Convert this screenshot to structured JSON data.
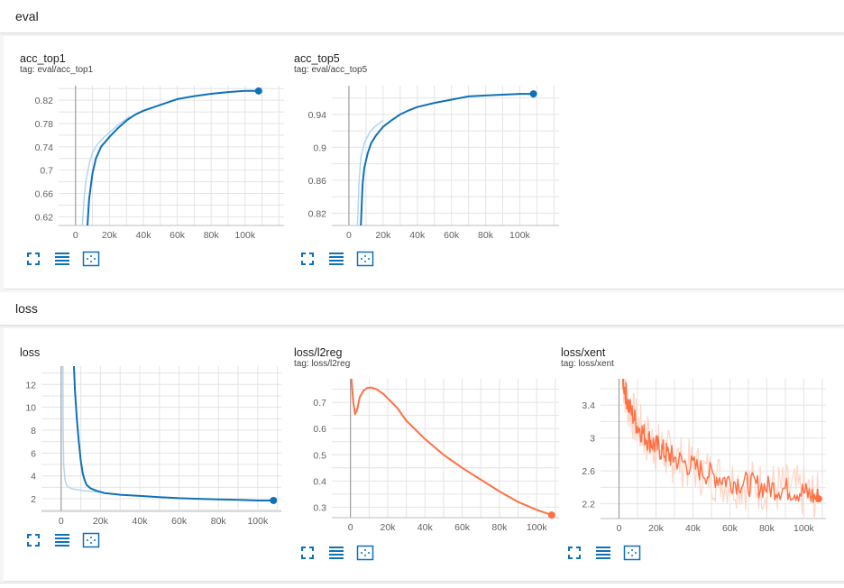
{
  "sections": {
    "eval": {
      "label": "eval"
    },
    "loss": {
      "label": "loss"
    }
  },
  "cards": {
    "acc_top1": {
      "title": "acc_top1",
      "tag": "tag: eval/acc_top1"
    },
    "acc_top5": {
      "title": "acc_top5",
      "tag": "tag: eval/acc_top5"
    },
    "loss": {
      "title": "loss",
      "tag": ""
    },
    "l2reg": {
      "title": "loss/l2reg",
      "tag": "tag: loss/l2reg"
    },
    "xent": {
      "title": "loss/xent",
      "tag": "tag: loss/xent"
    }
  },
  "icons": {
    "fullscreen": "fullscreen-icon",
    "log_scale": "list-lines-icon",
    "fit_domain": "fit-domain-icon"
  },
  "colors": {
    "blue": "#0f71b8",
    "blue_light": "#b8d4ec",
    "orange": "#ff7043",
    "orange_light": "#ffd5c6"
  },
  "chart_data": [
    {
      "id": "acc_top1",
      "type": "line",
      "title": "acc_top1",
      "x_ticks": [
        "0",
        "20k",
        "40k",
        "60k",
        "80k",
        "100k"
      ],
      "y_ticks": [
        "0.62",
        "0.66",
        "0.7",
        "0.74",
        "0.78",
        "0.82"
      ],
      "xlim": [
        -10000,
        123000
      ],
      "ylim": [
        0.605,
        0.845
      ],
      "series": [
        {
          "role": "smoothed",
          "color": "#0f71b8",
          "x": [
            7000,
            8000,
            10000,
            12000,
            15000,
            20000,
            25000,
            30000,
            35000,
            40000,
            50000,
            60000,
            70000,
            80000,
            90000,
            100000,
            108000
          ],
          "y": [
            0.605,
            0.65,
            0.695,
            0.72,
            0.74,
            0.757,
            0.772,
            0.785,
            0.795,
            0.802,
            0.812,
            0.822,
            0.827,
            0.831,
            0.834,
            0.836,
            0.836
          ]
        },
        {
          "role": "raw",
          "color": "#b8d4ec",
          "x": [
            4000,
            5000,
            6000,
            8000,
            10000,
            13000,
            17000,
            22000,
            27000,
            32000
          ],
          "y": [
            0.605,
            0.65,
            0.68,
            0.71,
            0.73,
            0.745,
            0.757,
            0.77,
            0.782,
            0.792
          ]
        }
      ]
    },
    {
      "id": "acc_top5",
      "type": "line",
      "title": "acc_top5",
      "x_ticks": [
        "0",
        "20k",
        "40k",
        "60k",
        "80k",
        "100k"
      ],
      "y_ticks": [
        "0.82",
        "0.86",
        "0.9",
        "0.94"
      ],
      "xlim": [
        -10000,
        123000
      ],
      "ylim": [
        0.805,
        0.975
      ],
      "series": [
        {
          "role": "smoothed",
          "color": "#0f71b8",
          "x": [
            7000,
            8000,
            9000,
            11000,
            13000,
            16000,
            20000,
            25000,
            30000,
            35000,
            40000,
            50000,
            60000,
            70000,
            80000,
            90000,
            100000,
            108000
          ],
          "y": [
            0.805,
            0.855,
            0.875,
            0.893,
            0.905,
            0.915,
            0.925,
            0.933,
            0.94,
            0.945,
            0.949,
            0.954,
            0.958,
            0.962,
            0.963,
            0.964,
            0.965,
            0.965
          ]
        },
        {
          "role": "raw",
          "color": "#b8d4ec",
          "x": [
            5000,
            6000,
            7000,
            9000,
            12000,
            15000,
            20000
          ],
          "y": [
            0.805,
            0.86,
            0.888,
            0.905,
            0.918,
            0.925,
            0.933
          ]
        }
      ]
    },
    {
      "id": "loss",
      "type": "line",
      "title": "loss",
      "x_ticks": [
        "0",
        "20k",
        "40k",
        "60k",
        "80k",
        "100k"
      ],
      "y_ticks": [
        "2",
        "4",
        "6",
        "8",
        "10",
        "12"
      ],
      "xlim": [
        -10000,
        112000
      ],
      "ylim": [
        0.9,
        13.6
      ],
      "series": [
        {
          "role": "smoothed",
          "color": "#0f71b8",
          "x": [
            6500,
            7000,
            8000,
            9000,
            10000,
            11000,
            12000,
            13000,
            15000,
            18000,
            22000,
            30000,
            40000,
            50000,
            60000,
            70000,
            80000,
            90000,
            100000,
            108000
          ],
          "y": [
            13.6,
            11.5,
            9.0,
            7.0,
            5.3,
            4.2,
            3.6,
            3.2,
            2.9,
            2.7,
            2.5,
            2.35,
            2.25,
            2.15,
            2.05,
            2.0,
            1.95,
            1.9,
            1.85,
            1.85
          ]
        },
        {
          "role": "raw",
          "color": "#b8d4ec",
          "x": [
            900,
            1000,
            1300,
            2000,
            3000,
            5000,
            8000,
            12000,
            18000,
            22000
          ],
          "y": [
            13.6,
            8.0,
            5.0,
            3.6,
            3.1,
            2.9,
            2.8,
            2.7,
            2.6,
            2.5
          ]
        }
      ]
    },
    {
      "id": "l2reg",
      "type": "line",
      "title": "loss/l2reg",
      "x_ticks": [
        "0",
        "20k",
        "40k",
        "60k",
        "80k",
        "100k"
      ],
      "y_ticks": [
        "0.3",
        "0.4",
        "0.5",
        "0.6",
        "0.7"
      ],
      "xlim": [
        -10000,
        112000
      ],
      "ylim": [
        0.26,
        0.79
      ],
      "series": [
        {
          "role": "smoothed",
          "color": "#ff7043",
          "x": [
            500,
            1500,
            2500,
            3500,
            5000,
            7000,
            9000,
            11000,
            14000,
            18000,
            25000,
            30000,
            40000,
            50000,
            60000,
            70000,
            80000,
            90000,
            100000,
            108000
          ],
          "y": [
            0.79,
            0.7,
            0.655,
            0.67,
            0.72,
            0.745,
            0.755,
            0.757,
            0.75,
            0.73,
            0.68,
            0.63,
            0.56,
            0.5,
            0.45,
            0.405,
            0.36,
            0.32,
            0.29,
            0.27
          ]
        }
      ]
    },
    {
      "id": "xent",
      "type": "line",
      "title": "loss/xent",
      "x_ticks": [
        "0",
        "20k",
        "40k",
        "60k",
        "80k",
        "100k"
      ],
      "y_ticks": [
        "2.2",
        "2.6",
        "3",
        "3.4"
      ],
      "xlim": [
        -10000,
        112000
      ],
      "ylim": [
        2.02,
        3.72
      ],
      "series": [
        {
          "role": "smoothed",
          "color": "#ff7043",
          "x": [
            2000,
            5000,
            10000,
            15000,
            20000,
            25000,
            30000,
            40000,
            50000,
            60000,
            70000,
            80000,
            90000,
            100000,
            108000
          ],
          "y": [
            3.72,
            3.4,
            3.15,
            3.0,
            2.9,
            2.82,
            2.75,
            2.65,
            2.55,
            2.48,
            2.44,
            2.4,
            2.38,
            2.34,
            2.26
          ]
        },
        {
          "role": "raw",
          "color": "#ffd5c6",
          "x": [
            2000,
            5000,
            10000,
            15000,
            20000,
            25000,
            30000,
            40000,
            50000,
            60000,
            70000,
            80000,
            90000,
            100000,
            108000
          ],
          "y": [
            3.72,
            3.4,
            3.15,
            3.0,
            2.9,
            2.82,
            2.75,
            2.65,
            2.55,
            2.48,
            2.44,
            2.4,
            2.38,
            2.34,
            2.26
          ]
        }
      ]
    }
  ]
}
